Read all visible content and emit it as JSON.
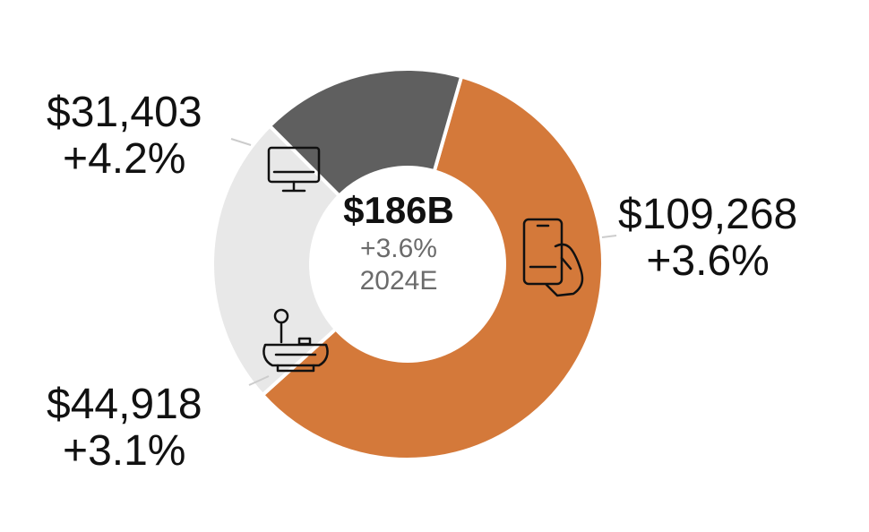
{
  "chart_data": {
    "type": "pie",
    "donut": true,
    "center": {
      "total": "$186B",
      "growth": "+3.6%",
      "year": "2024E"
    },
    "slices": [
      {
        "value": 109268,
        "value_label": "$109,268",
        "growth": "+3.6%",
        "color": "#d4793a",
        "icon": "smartphone-in-hand-icon"
      },
      {
        "value": 44918,
        "value_label": "$44,918",
        "growth": "+3.1%",
        "color": "#e8e8e8",
        "icon": "game-console-joystick-icon"
      },
      {
        "value": 31403,
        "value_label": "$31,403",
        "growth": "+4.2%",
        "color": "#5f5f5f",
        "icon": "pc-monitor-icon"
      }
    ],
    "start_angle_deg": 16,
    "separator_color": "#ffffff",
    "leader_line_color": "#cccccc"
  }
}
